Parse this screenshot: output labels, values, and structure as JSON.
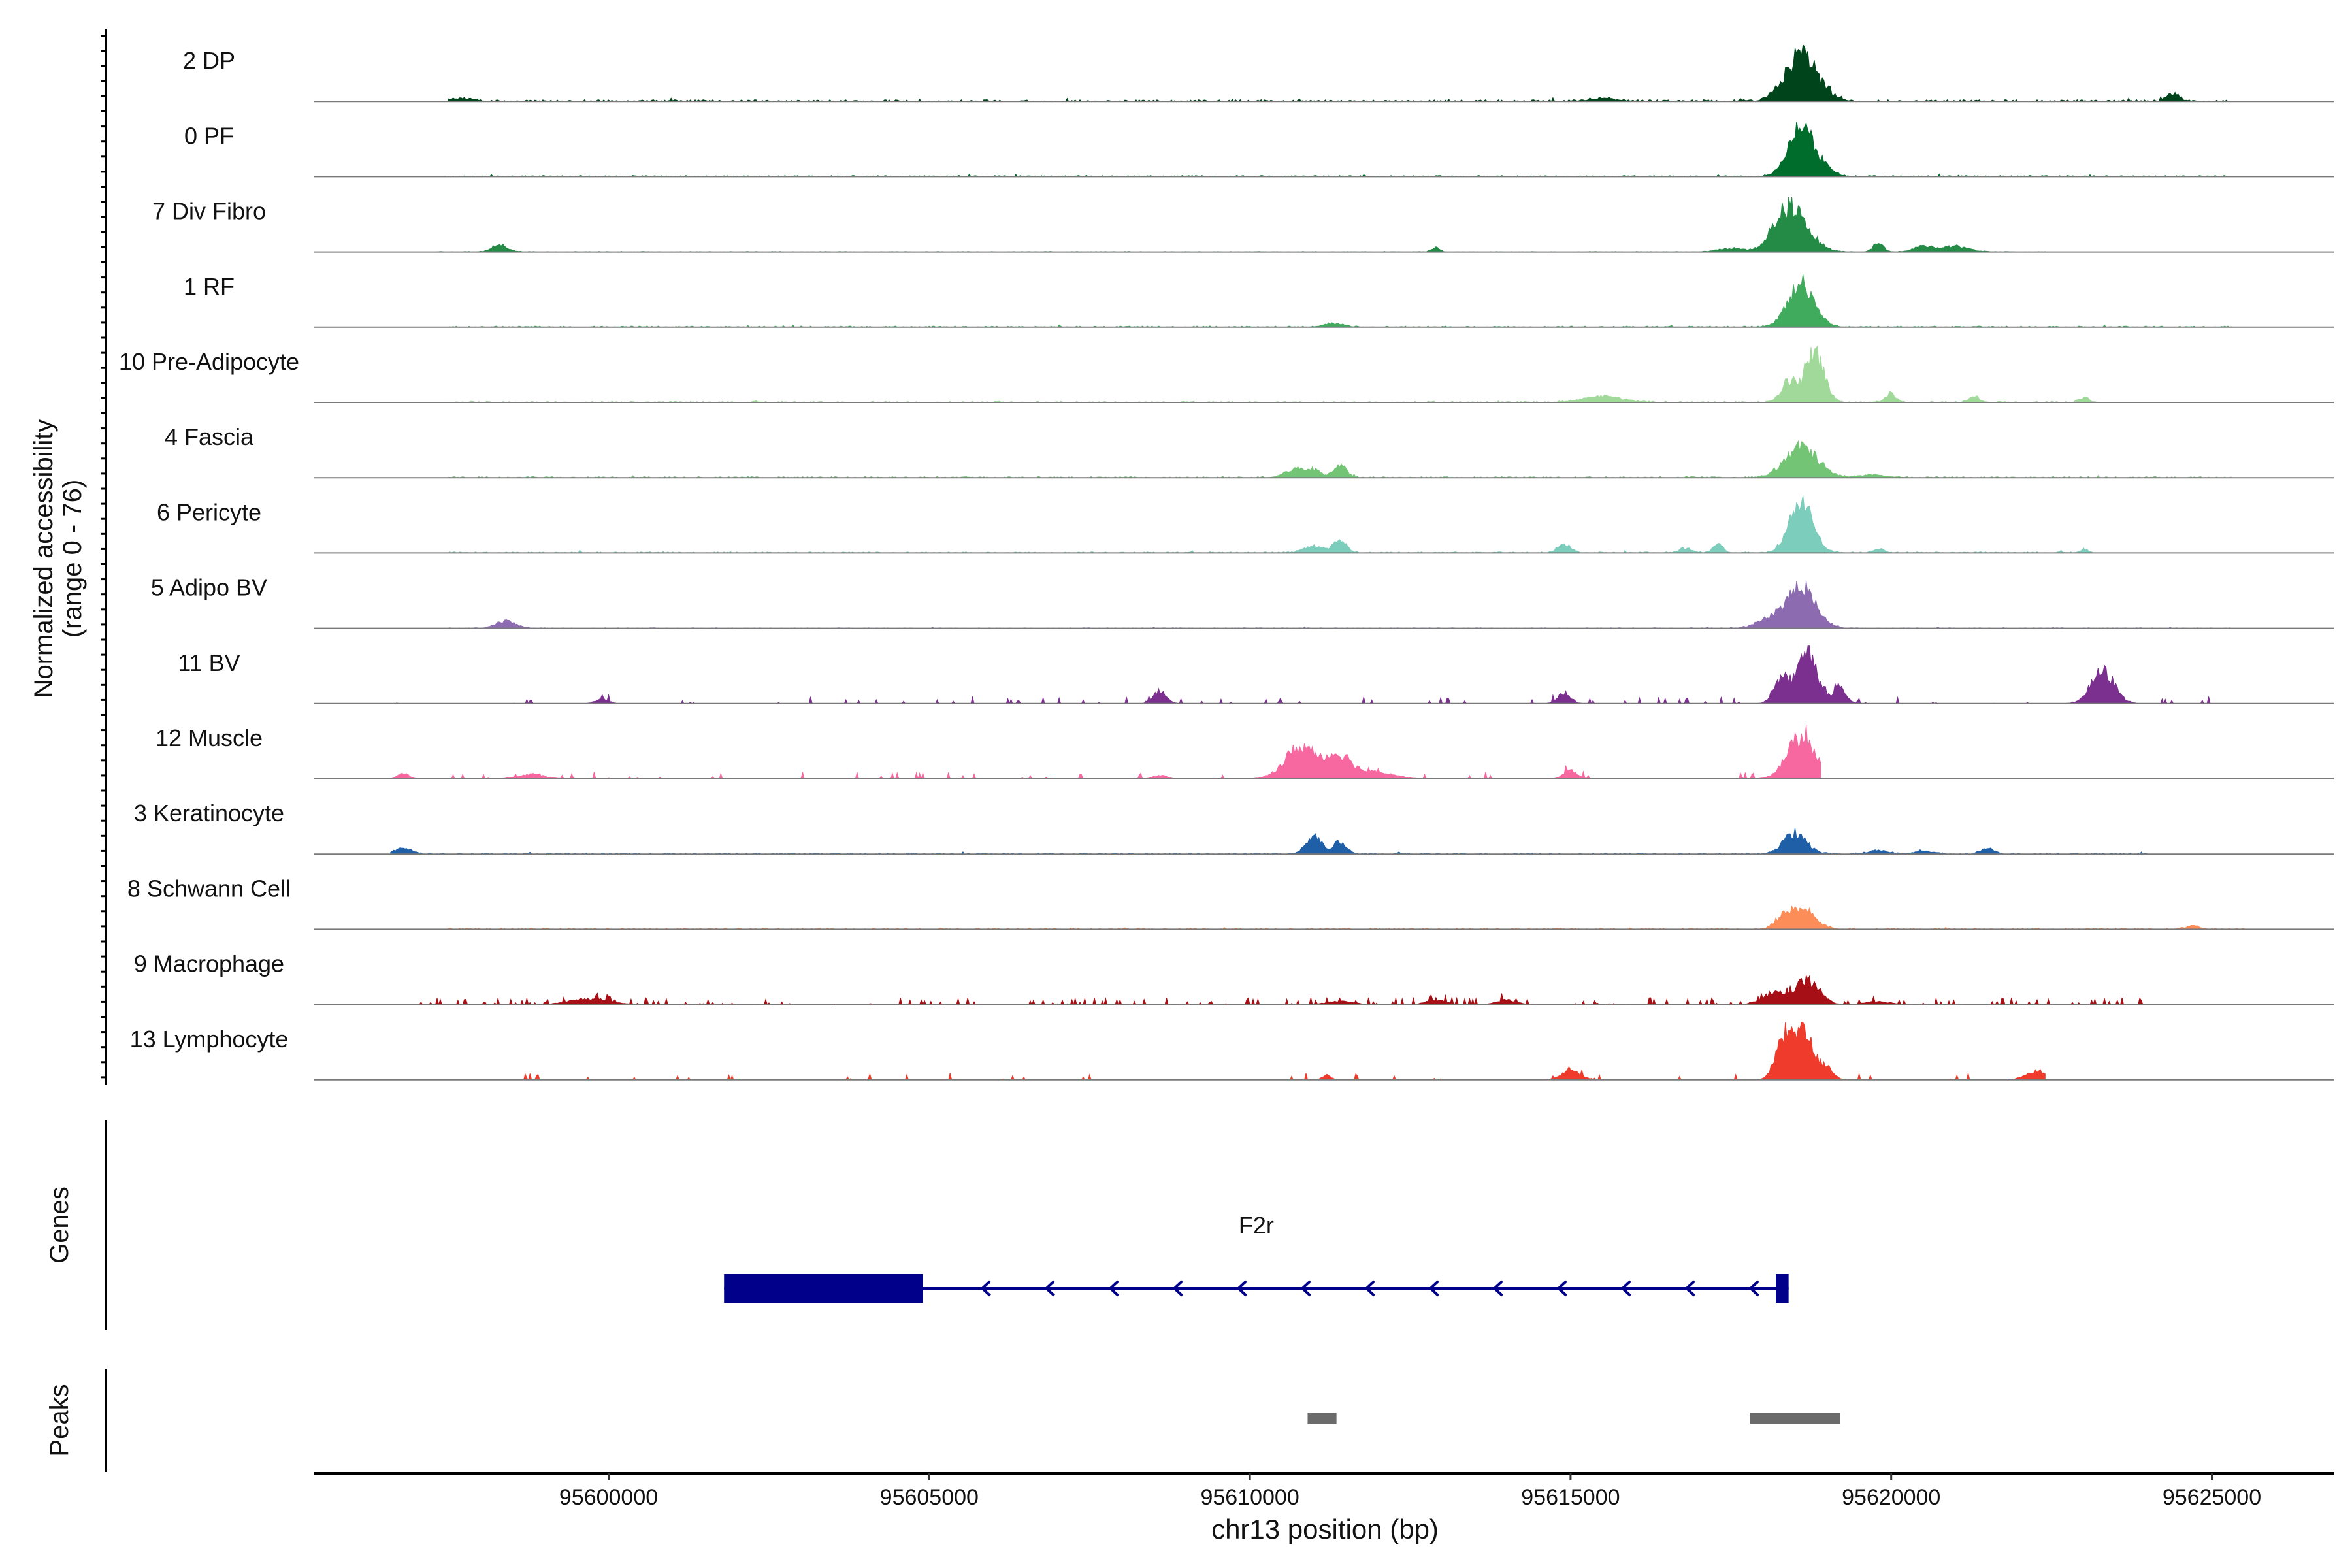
{
  "chart_data": {
    "type": "area",
    "title": "",
    "ylabel_main": "Normalized accessibility",
    "ylabel_range": "(range 0 - 76)",
    "yrange": [
      0,
      76
    ],
    "xlabel": "chr13 position (bp)",
    "chromosome": "chr13",
    "xlim": [
      95595400,
      95626900
    ],
    "xticks": [
      95600000,
      95605000,
      95610000,
      95615000,
      95620000,
      95625000
    ],
    "xtick_labels": [
      "95600000",
      "95605000",
      "95610000",
      "95615000",
      "95620000",
      "95625000"
    ],
    "tracks": [
      {
        "name": "2 DP",
        "color": "#00441b",
        "peaks": [
          [
            95618600,
            0.85,
            220
          ],
          [
            95618200,
            0.08,
            120
          ],
          [
            95619000,
            0.08,
            150
          ],
          [
            95624400,
            0.14,
            90
          ],
          [
            95615500,
            0.05,
            200
          ],
          [
            95597700,
            0.04,
            200
          ]
        ],
        "noise": [
          0.03,
          0.05
        ],
        "span": [
          95597500,
          95625300
        ]
      },
      {
        "name": "0 PF",
        "color": "#006d2c",
        "peaks": [
          [
            95618600,
            0.85,
            200
          ],
          [
            95619000,
            0.08,
            150
          ]
        ],
        "noise": [
          0.02,
          0.04
        ],
        "span": [
          95597500,
          95625300
        ]
      },
      {
        "name": "7 Div Fibro",
        "color": "#238b45",
        "peaks": [
          [
            95618500,
            0.55,
            250
          ],
          [
            95618300,
            0.3,
            200
          ],
          [
            95598300,
            0.12,
            120
          ],
          [
            95619800,
            0.15,
            80
          ],
          [
            95620500,
            0.1,
            150
          ],
          [
            95621000,
            0.1,
            200
          ],
          [
            95612900,
            0.08,
            60
          ],
          [
            95617500,
            0.06,
            200
          ]
        ],
        "noise": [
          0.01,
          0.0
        ],
        "span": [
          95597300,
          95622400
        ]
      },
      {
        "name": "1 RF",
        "color": "#41ab5d",
        "peaks": [
          [
            95618600,
            0.75,
            200
          ],
          [
            95611300,
            0.06,
            150
          ]
        ],
        "noise": [
          0.02,
          0.03
        ],
        "span": [
          95597500,
          95625300
        ]
      },
      {
        "name": "10 Pre-Adipocyte",
        "color": "#a1d99b",
        "peaks": [
          [
            95618800,
            0.85,
            150
          ],
          [
            95618400,
            0.35,
            120
          ],
          [
            95615500,
            0.1,
            300
          ],
          [
            95620000,
            0.15,
            80
          ],
          [
            95621300,
            0.1,
            80
          ],
          [
            95623000,
            0.08,
            80
          ]
        ],
        "noise": [
          0.02,
          0.02
        ],
        "span": [
          95597500,
          95623200
        ]
      },
      {
        "name": "4 Fascia",
        "color": "#74c476",
        "peaks": [
          [
            95618600,
            0.55,
            250
          ],
          [
            95611400,
            0.22,
            100
          ],
          [
            95610700,
            0.15,
            150
          ],
          [
            95611000,
            0.12,
            100
          ],
          [
            95619700,
            0.05,
            200
          ]
        ],
        "noise": [
          0.02,
          0.03
        ],
        "span": [
          95597500,
          95625300
        ]
      },
      {
        "name": "6 Pericyte",
        "color": "#7ccdbb",
        "peaks": [
          [
            95618600,
            0.9,
            180
          ],
          [
            95611400,
            0.22,
            100
          ],
          [
            95611000,
            0.12,
            150
          ],
          [
            95614900,
            0.15,
            100
          ],
          [
            95617300,
            0.14,
            80
          ],
          [
            95616800,
            0.08,
            100
          ],
          [
            95619800,
            0.07,
            80
          ],
          [
            95623000,
            0.06,
            60
          ]
        ],
        "noise": [
          0.02,
          0.04
        ],
        "span": [
          95597500,
          95623200
        ]
      },
      {
        "name": "5 Adipo BV",
        "color": "#8c6bb1",
        "peaks": [
          [
            95618600,
            0.72,
            220
          ],
          [
            95598400,
            0.12,
            150
          ],
          [
            95618100,
            0.15,
            200
          ]
        ],
        "noise": [
          0.01,
          0.02
        ],
        "span": [
          95597500,
          95625300
        ]
      },
      {
        "name": "11 BV",
        "color": "#7b2f8f",
        "peaks": [
          [
            95618700,
            0.9,
            150
          ],
          [
            95618300,
            0.45,
            120
          ],
          [
            95619200,
            0.25,
            100
          ],
          [
            95623300,
            0.55,
            180
          ],
          [
            95608600,
            0.22,
            100
          ],
          [
            95614900,
            0.18,
            100
          ],
          [
            95599900,
            0.08,
            100
          ]
        ],
        "noise": [
          0.02,
          0.0
        ],
        "span": [
          95596600,
          95625000
        ],
        "sparse": 0.08
      },
      {
        "name": "12 Muscle",
        "color": "#f768a1",
        "peaks": [
          [
            95618600,
            0.72,
            220
          ],
          [
            95610800,
            0.55,
            250
          ],
          [
            95611400,
            0.4,
            200
          ],
          [
            95612000,
            0.12,
            250
          ],
          [
            95615000,
            0.15,
            100
          ],
          [
            95596800,
            0.1,
            80
          ],
          [
            95598800,
            0.08,
            200
          ],
          [
            95608600,
            0.06,
            100
          ]
        ],
        "noise": [
          0.02,
          0.0
        ],
        "span": [
          95596600,
          95618900
        ],
        "sparse": 0.06
      },
      {
        "name": "3 Keratinocyte",
        "color": "#1f5fa8",
        "peaks": [
          [
            95618500,
            0.35,
            180
          ],
          [
            95611000,
            0.3,
            120
          ],
          [
            95611400,
            0.2,
            100
          ],
          [
            95596800,
            0.1,
            120
          ],
          [
            95621500,
            0.1,
            100
          ],
          [
            95619800,
            0.06,
            150
          ],
          [
            95620500,
            0.05,
            150
          ]
        ],
        "noise": [
          0.02,
          0.03
        ],
        "span": [
          95596600,
          95624000
        ]
      },
      {
        "name": "8 Schwann Cell",
        "color": "#fc8d59",
        "peaks": [
          [
            95618600,
            0.35,
            200
          ],
          [
            95618300,
            0.15,
            120
          ],
          [
            95624700,
            0.06,
            100
          ]
        ],
        "noise": [
          0.02,
          0.02
        ],
        "span": [
          95597500,
          95625500
        ]
      },
      {
        "name": "9 Macrophage",
        "color": "#a50f15",
        "peaks": [
          [
            95618700,
            0.42,
            180
          ],
          [
            95618200,
            0.2,
            200
          ],
          [
            95599700,
            0.1,
            300
          ],
          [
            95611400,
            0.06,
            200
          ],
          [
            95612900,
            0.08,
            150
          ],
          [
            95614000,
            0.08,
            150
          ],
          [
            95619800,
            0.05,
            200
          ]
        ],
        "noise": [
          0.02,
          0.0
        ],
        "span": [
          95597000,
          95624000
        ],
        "sparse": 0.15
      },
      {
        "name": "13 Lymphocyte",
        "color": "#ef3b2c",
        "peaks": [
          [
            95618600,
            0.9,
            170
          ],
          [
            95618300,
            0.55,
            120
          ],
          [
            95619000,
            0.2,
            100
          ],
          [
            95615000,
            0.15,
            150
          ],
          [
            95622300,
            0.15,
            180
          ],
          [
            95611200,
            0.1,
            60
          ]
        ],
        "noise": [
          0.02,
          0.0
        ],
        "span": [
          95597000,
          95622400
        ],
        "sparse": 0.05
      }
    ],
    "genes_label": "Genes",
    "gene": {
      "name": "F2r",
      "strand": "-",
      "color": "#00008b",
      "start": 95601800,
      "end": 95618400,
      "exons": [
        [
          95601800,
          95604900
        ],
        [
          95618200,
          95618400
        ]
      ]
    },
    "peaks_label": "Peaks",
    "peak_regions": [
      [
        95610900,
        95611350
      ],
      [
        95617800,
        95619200
      ]
    ],
    "peak_color": "#6b6b6b"
  }
}
